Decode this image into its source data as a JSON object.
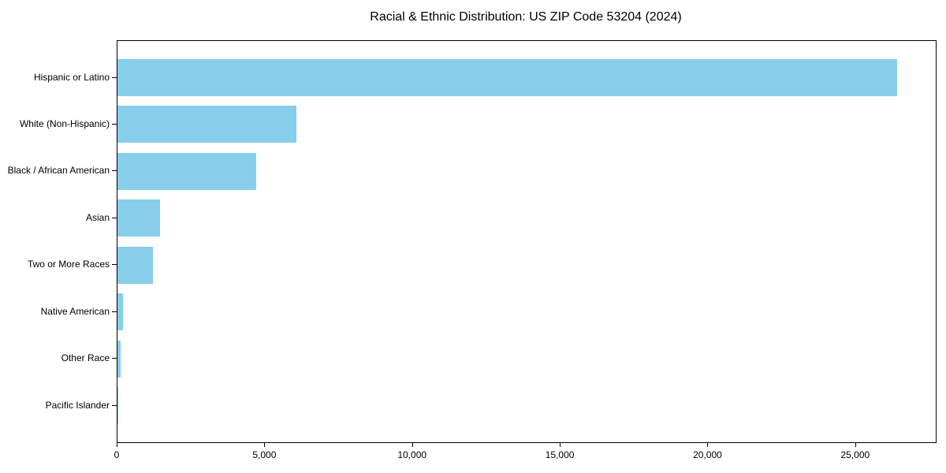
{
  "figure": {
    "title": "Racial & Ethnic Distribution: US ZIP Code 53204 (2024)"
  },
  "chart_data": {
    "type": "bar",
    "orientation": "horizontal",
    "title": "Racial & Ethnic Distribution: US ZIP Code 53204 (2024)",
    "xlabel": "",
    "ylabel": "",
    "categories": [
      "Hispanic or Latino",
      "White (Non-Hispanic)",
      "Black / African American",
      "Asian",
      "Two or More Races",
      "Native American",
      "Other Race",
      "Pacific Islander"
    ],
    "values": [
      26400,
      6050,
      4700,
      1450,
      1200,
      180,
      100,
      10
    ],
    "xlim": [
      0,
      27700
    ],
    "x_ticks": [
      0,
      5000,
      10000,
      15000,
      20000,
      25000
    ],
    "x_tick_labels": [
      "0",
      "5,000",
      "10,000",
      "15,000",
      "20,000",
      "25,000"
    ],
    "bar_color": "#87CEEB",
    "axis_color": "#000000",
    "text_color": "#000000",
    "grid": false,
    "legend": null
  }
}
